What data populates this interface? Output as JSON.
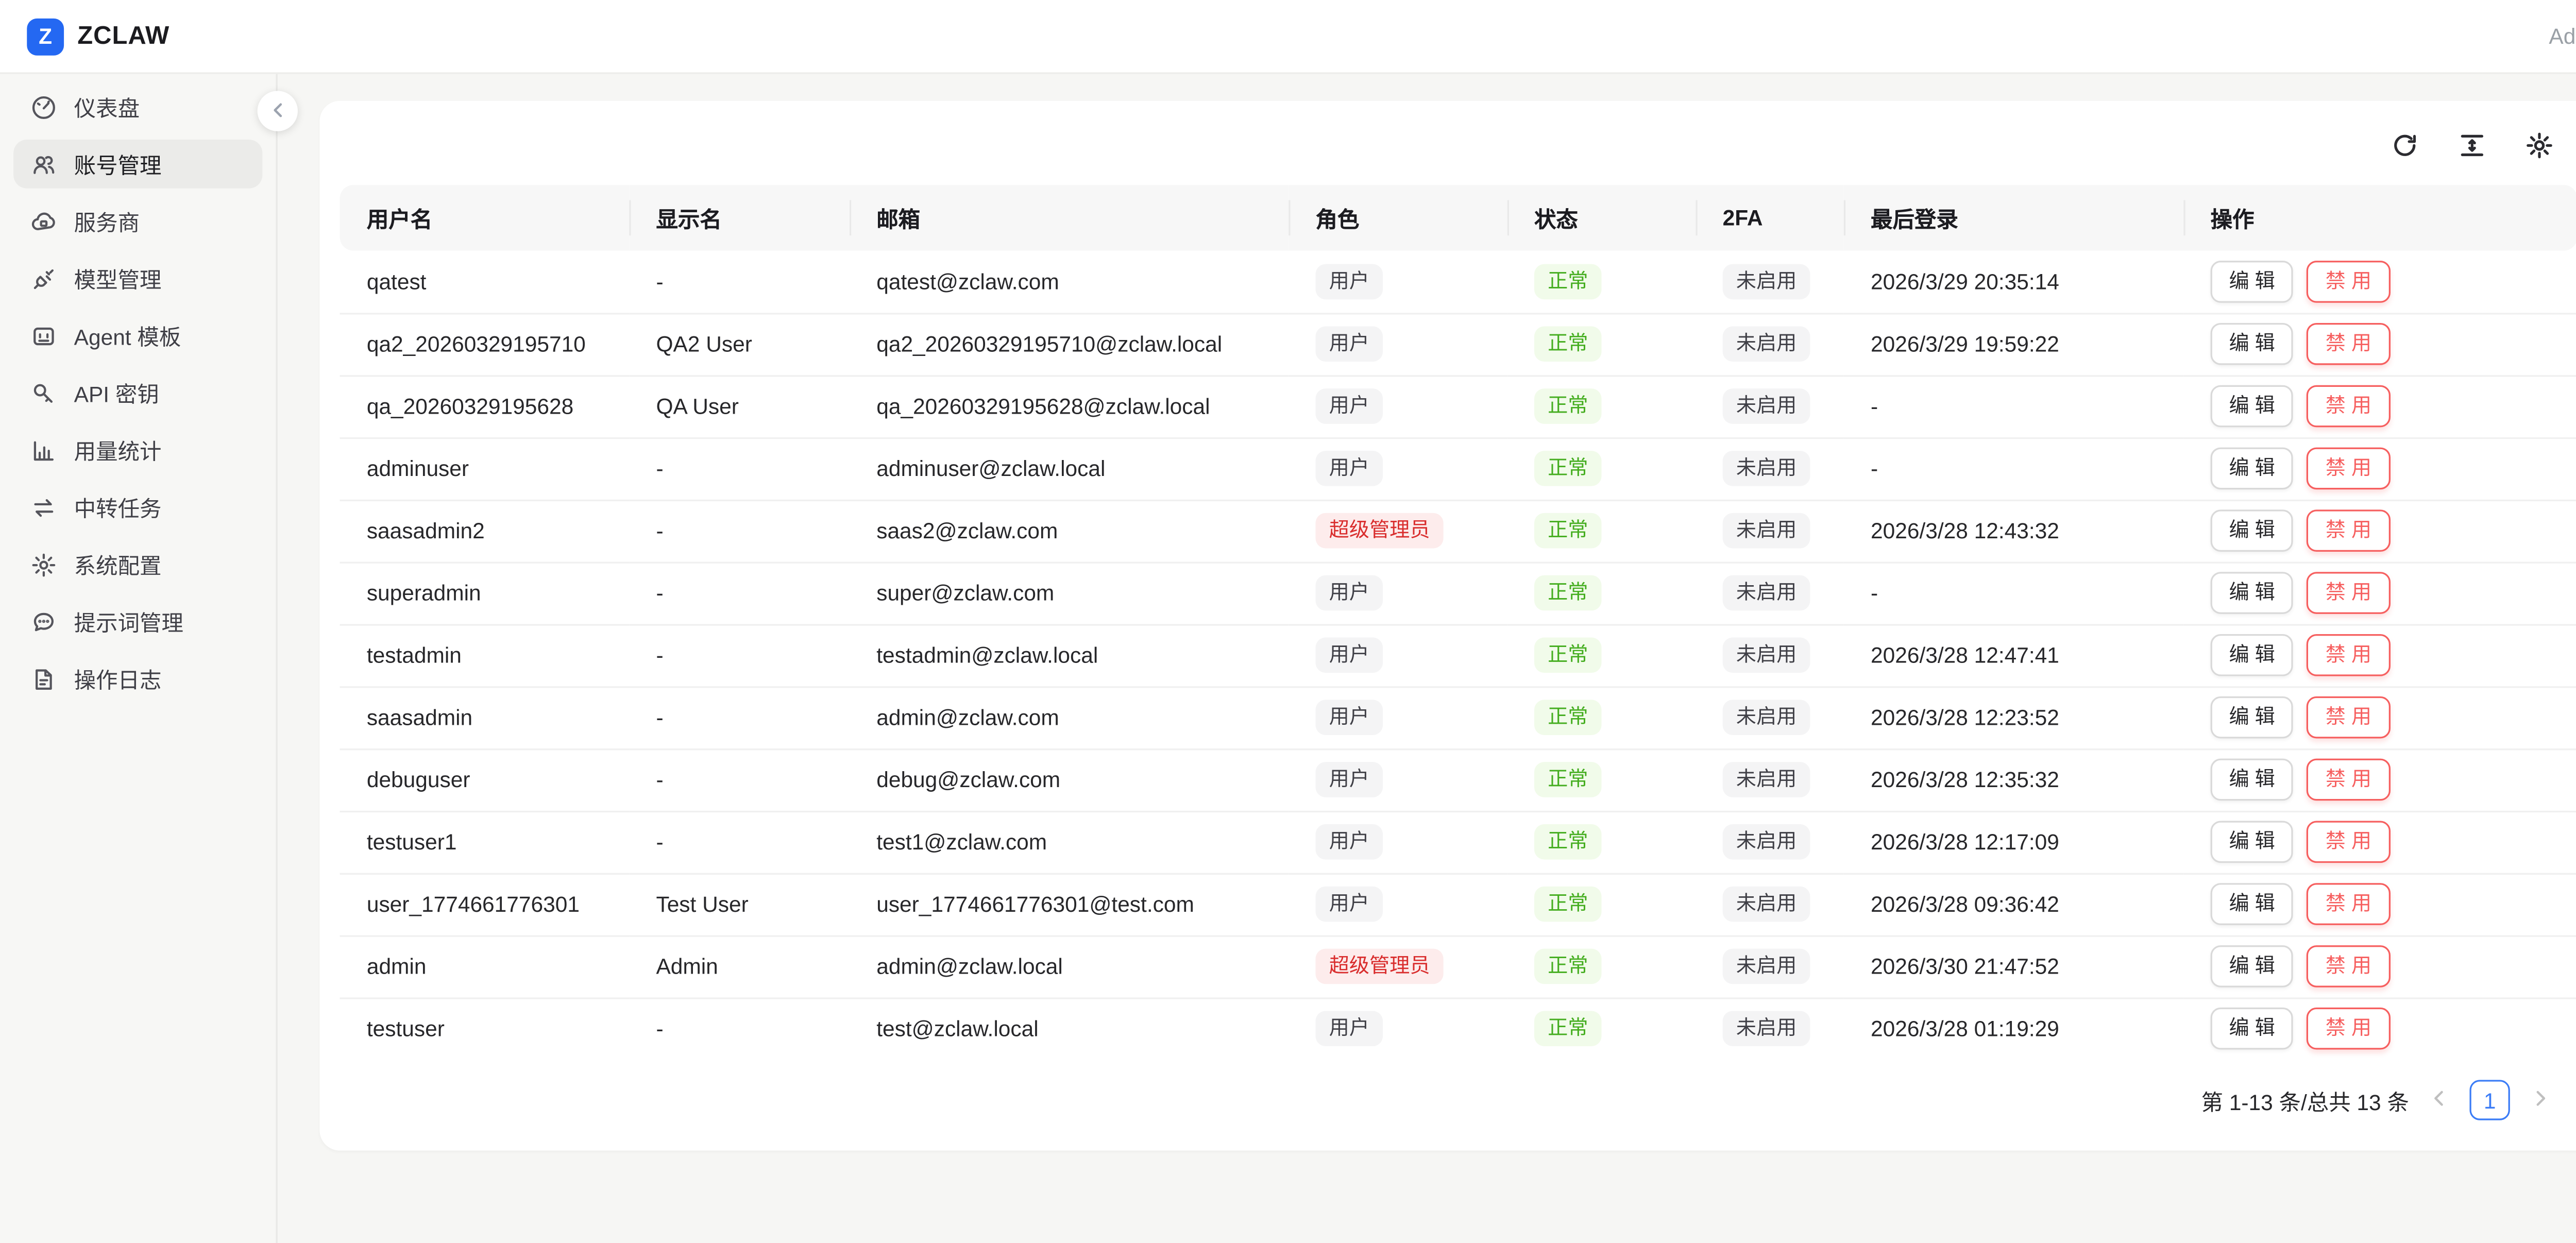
{
  "brand": {
    "logo_letter": "Z",
    "name": "ZCLAW"
  },
  "topbar": {
    "user_label": "Admin"
  },
  "sidebar": {
    "collapse_icon": "chevron-left",
    "items": [
      {
        "id": "dashboard",
        "icon": "gauge",
        "label": "仪表盘",
        "active": false
      },
      {
        "id": "accounts",
        "icon": "users",
        "label": "账号管理",
        "active": true
      },
      {
        "id": "providers",
        "icon": "cloud",
        "label": "服务商",
        "active": false
      },
      {
        "id": "models",
        "icon": "plug",
        "label": "模型管理",
        "active": false
      },
      {
        "id": "agent-templates",
        "icon": "robot",
        "label": "Agent 模板",
        "active": false
      },
      {
        "id": "api-keys",
        "icon": "key",
        "label": "API 密钥",
        "active": false
      },
      {
        "id": "usage-stats",
        "icon": "chart",
        "label": "用量统计",
        "active": false
      },
      {
        "id": "relay-tasks",
        "icon": "swap",
        "label": "中转任务",
        "active": false
      },
      {
        "id": "system-config",
        "icon": "gear",
        "label": "系统配置",
        "active": false
      },
      {
        "id": "prompts",
        "icon": "chat",
        "label": "提示词管理",
        "active": false
      },
      {
        "id": "operation-logs",
        "icon": "doc",
        "label": "操作日志",
        "active": false
      }
    ]
  },
  "toolbar": {
    "icons": [
      "refresh",
      "row-height",
      "settings"
    ]
  },
  "table": {
    "columns": [
      "用户名",
      "显示名",
      "邮箱",
      "角色",
      "状态",
      "2FA",
      "最后登录",
      "操作"
    ],
    "actions": {
      "edit": "编 辑",
      "disable": "禁 用"
    },
    "rows": [
      {
        "username": "qatest",
        "display_name": "-",
        "email": "qatest@zclaw.com",
        "role": "用户",
        "role_type": "user",
        "status": "正常",
        "twofa": "未启用",
        "last_login": "2026/3/29 20:35:14"
      },
      {
        "username": "qa2_20260329195710",
        "display_name": "QA2 User",
        "email": "qa2_20260329195710@zclaw.local",
        "role": "用户",
        "role_type": "user",
        "status": "正常",
        "twofa": "未启用",
        "last_login": "2026/3/29 19:59:22"
      },
      {
        "username": "qa_20260329195628",
        "display_name": "QA User",
        "email": "qa_20260329195628@zclaw.local",
        "role": "用户",
        "role_type": "user",
        "status": "正常",
        "twofa": "未启用",
        "last_login": "-"
      },
      {
        "username": "adminuser",
        "display_name": "-",
        "email": "adminuser@zclaw.local",
        "role": "用户",
        "role_type": "user",
        "status": "正常",
        "twofa": "未启用",
        "last_login": "-"
      },
      {
        "username": "saasadmin2",
        "display_name": "-",
        "email": "saas2@zclaw.com",
        "role": "超级管理员",
        "role_type": "super-admin",
        "status": "正常",
        "twofa": "未启用",
        "last_login": "2026/3/28 12:43:32"
      },
      {
        "username": "superadmin",
        "display_name": "-",
        "email": "super@zclaw.com",
        "role": "用户",
        "role_type": "user",
        "status": "正常",
        "twofa": "未启用",
        "last_login": "-"
      },
      {
        "username": "testadmin",
        "display_name": "-",
        "email": "testadmin@zclaw.local",
        "role": "用户",
        "role_type": "user",
        "status": "正常",
        "twofa": "未启用",
        "last_login": "2026/3/28 12:47:41"
      },
      {
        "username": "saasadmin",
        "display_name": "-",
        "email": "admin@zclaw.com",
        "role": "用户",
        "role_type": "user",
        "status": "正常",
        "twofa": "未启用",
        "last_login": "2026/3/28 12:23:52"
      },
      {
        "username": "debuguser",
        "display_name": "-",
        "email": "debug@zclaw.com",
        "role": "用户",
        "role_type": "user",
        "status": "正常",
        "twofa": "未启用",
        "last_login": "2026/3/28 12:35:32"
      },
      {
        "username": "testuser1",
        "display_name": "-",
        "email": "test1@zclaw.com",
        "role": "用户",
        "role_type": "user",
        "status": "正常",
        "twofa": "未启用",
        "last_login": "2026/3/28 12:17:09"
      },
      {
        "username": "user_1774661776301",
        "display_name": "Test User",
        "email": "user_1774661776301@test.com",
        "role": "用户",
        "role_type": "user",
        "status": "正常",
        "twofa": "未启用",
        "last_login": "2026/3/28 09:36:42"
      },
      {
        "username": "admin",
        "display_name": "Admin",
        "email": "admin@zclaw.local",
        "role": "超级管理员",
        "role_type": "super-admin",
        "status": "正常",
        "twofa": "未启用",
        "last_login": "2026/3/30 21:47:52"
      },
      {
        "username": "testuser",
        "display_name": "-",
        "email": "test@zclaw.local",
        "role": "用户",
        "role_type": "user",
        "status": "正常",
        "twofa": "未启用",
        "last_login": "2026/3/28 01:19:29"
      }
    ]
  },
  "pagination": {
    "summary": "第 1-13 条/总共 13 条",
    "current_page": "1"
  },
  "colors": {
    "brand_blue": "#2468f2",
    "pagination_blue": "#3b7cf6",
    "status_green": "#44ad1f",
    "status_green_bg": "#f1fbea",
    "role_red": "#d92d2d",
    "role_red_bg": "#fdecec",
    "danger_red": "#f65f5f",
    "badge_gray_bg": "#f4f4f5"
  }
}
